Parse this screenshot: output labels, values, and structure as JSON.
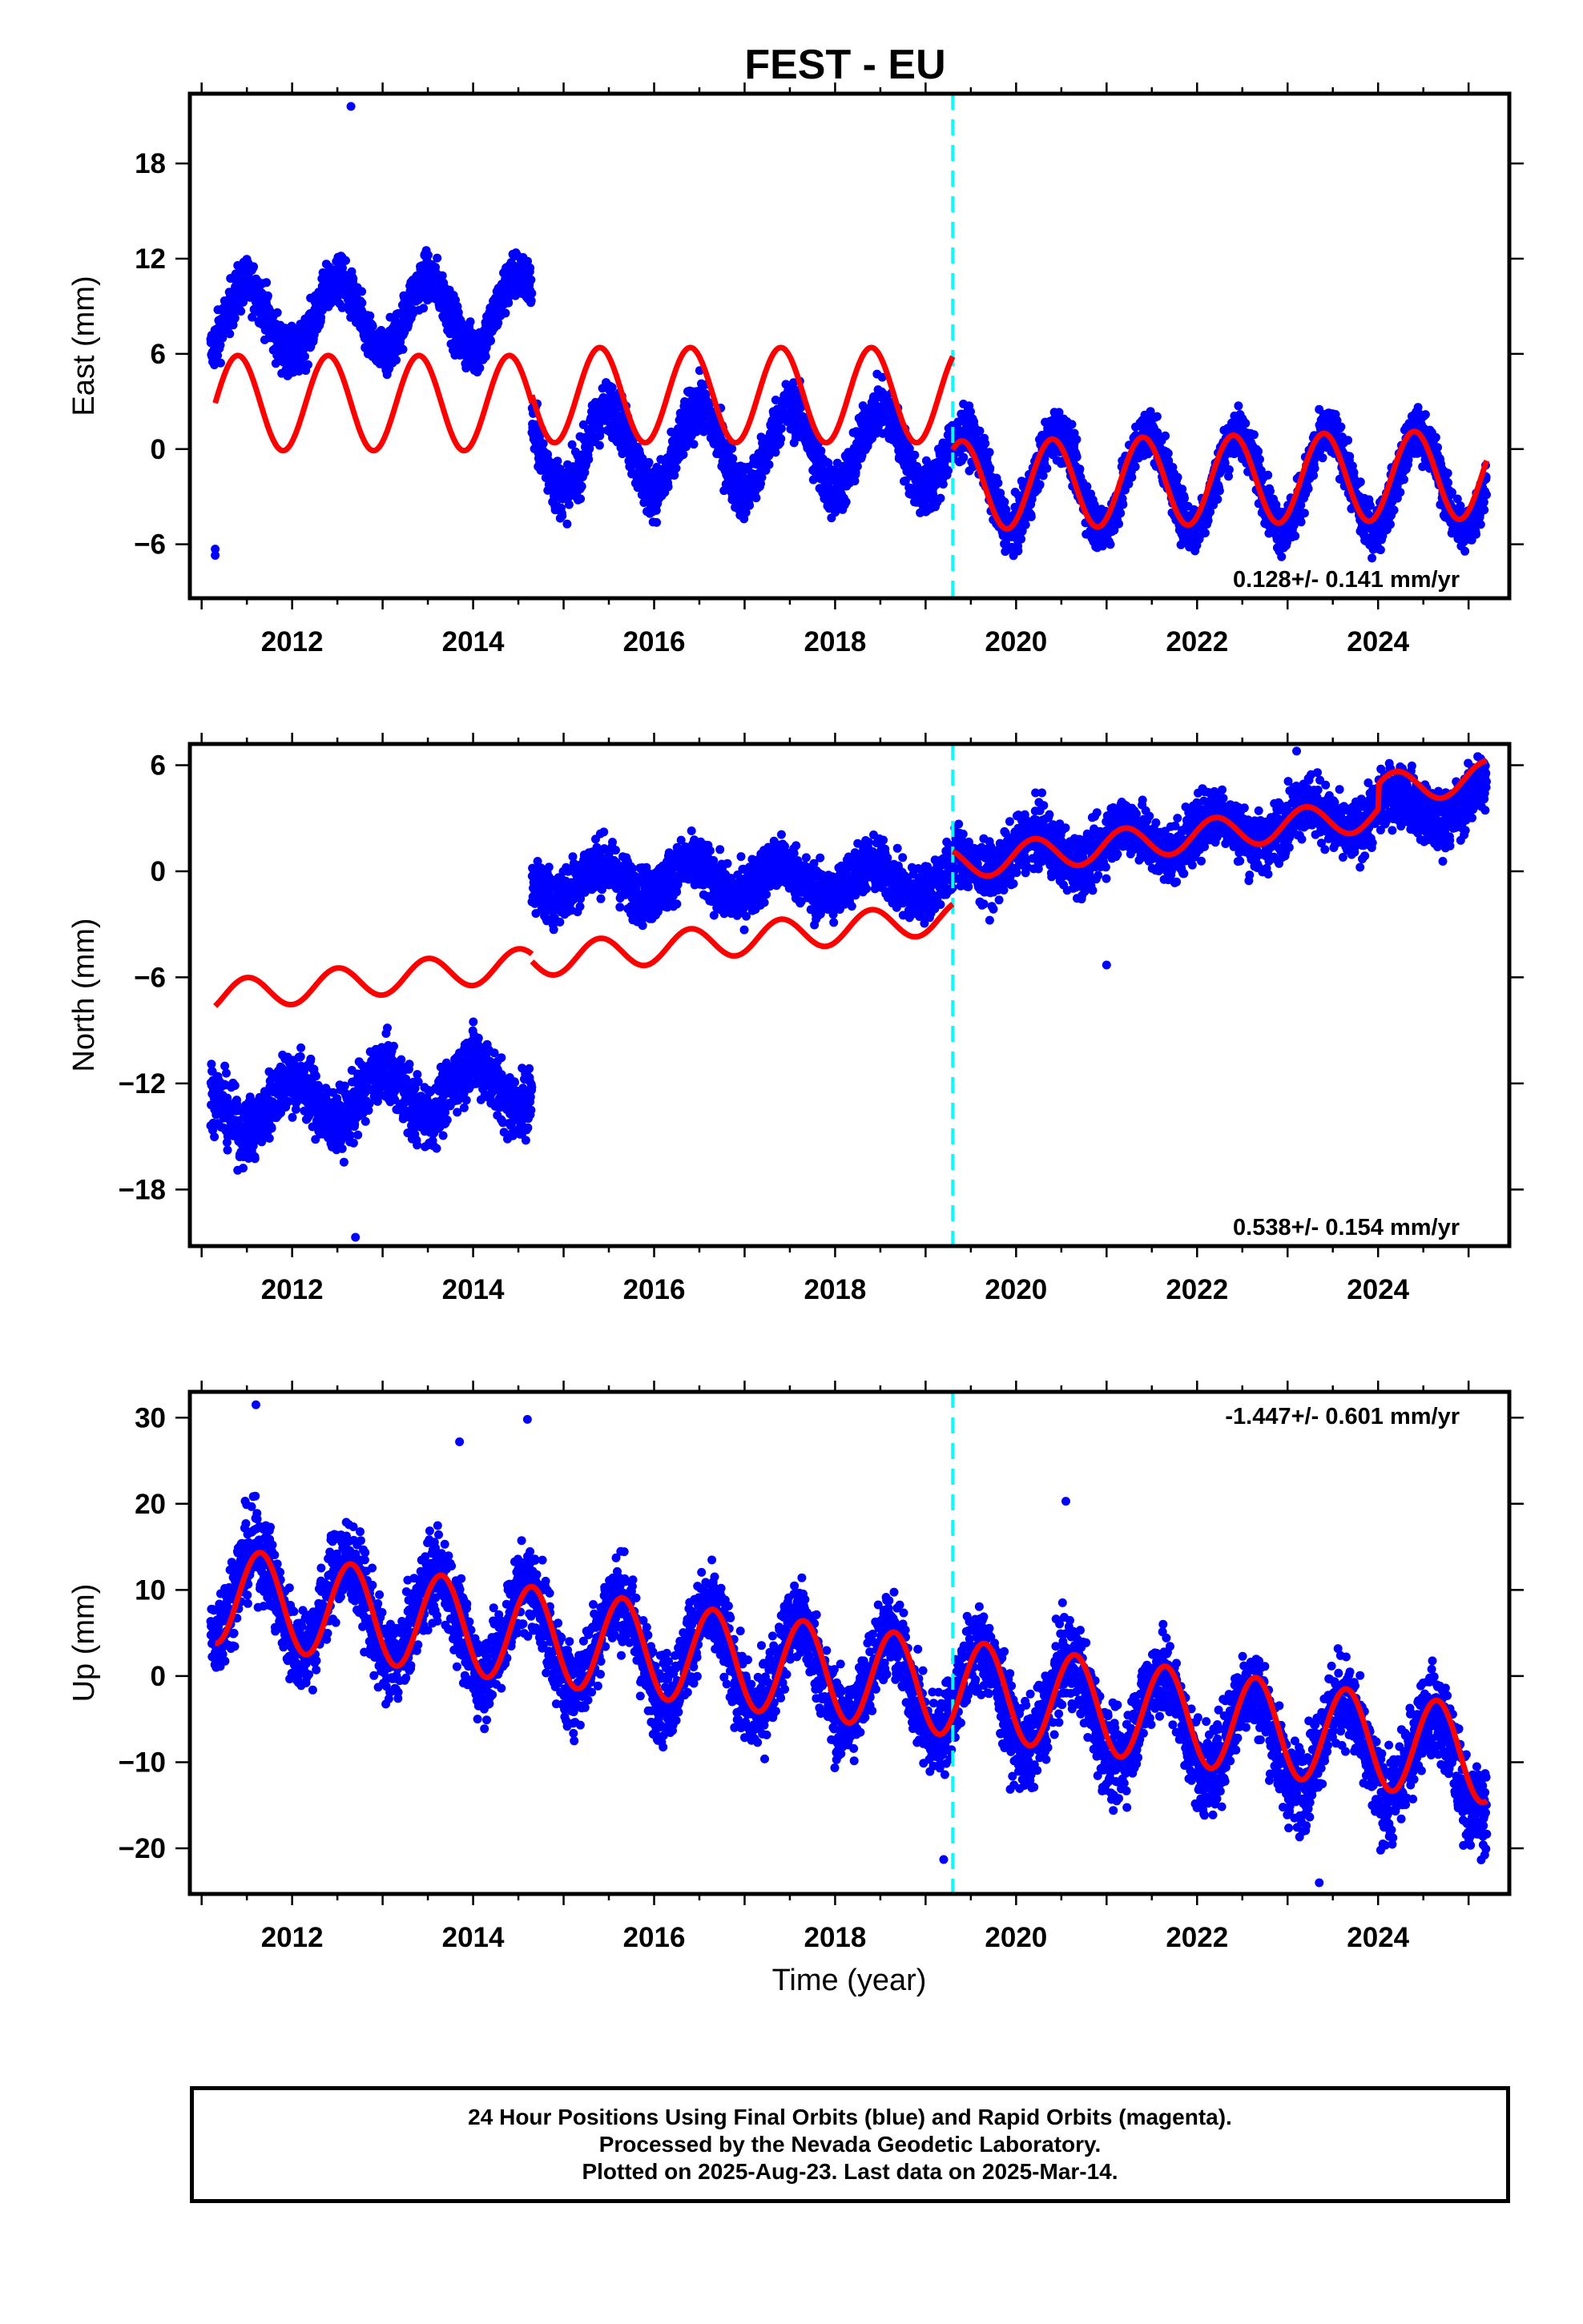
{
  "figure": {
    "title": "FEST - EU",
    "xlabel": "Time (year)",
    "footer": [
      "24 Hour Positions Using Final Orbits (blue) and Rapid Orbits (magenta).",
      "Processed by the Nevada Geodetic Laboratory.",
      "Plotted on 2025-Aug-23. Last data on 2025-Mar-14."
    ],
    "colors": {
      "final_orbits": "#0000ff",
      "model_fit": "#ff0000",
      "equipment_change": "#00ffff",
      "frame": "#000000"
    }
  },
  "chart_data": [
    {
      "type": "scatter",
      "panel": "east",
      "ylabel": "East (mm)",
      "xlim": [
        2010.87,
        2025.45
      ],
      "ylim": [
        -9.4,
        22.4
      ],
      "yticks": [
        -6,
        0,
        6,
        12,
        18
      ],
      "xticks": [
        2012,
        2014,
        2016,
        2018,
        2020,
        2022,
        2024
      ],
      "grid": false,
      "rate_label": "0.128+/- 0.141 mm/yr",
      "rate_label_position": "bottom-right",
      "discontinuities": [
        2019.3
      ],
      "outliers": [
        {
          "x": 2011.15,
          "y": -6.3
        },
        {
          "x": 2011.15,
          "y": -6.7
        },
        {
          "x": 2012.65,
          "y": 21.6
        }
      ],
      "observed_envelope": [
        {
          "start": 2011.1,
          "end": 2014.65,
          "offset": 8.0,
          "trend": 0.2,
          "amplitude": 2.3,
          "phase_year": 2012.5,
          "scatter": 1.1
        },
        {
          "start": 2014.65,
          "end": 2019.3,
          "offset": 0.0,
          "trend": 0.0,
          "amplitude": 2.6,
          "phase_year": 2015.5,
          "scatter": 1.2
        },
        {
          "start": 2019.3,
          "end": 2025.2,
          "offset": -2.0,
          "trend": 0.0,
          "amplitude": 3.0,
          "phase_year": 2020.45,
          "scatter": 1.1
        }
      ],
      "model_segments": [
        {
          "start": 2011.15,
          "end": 2014.65,
          "offset": 2.9,
          "trend": 0.0,
          "amplitude": 3.0,
          "phase_year": 2011.4,
          "step_year": null,
          "step": 0
        },
        {
          "start": 2014.65,
          "end": 2019.3,
          "offset": 3.4,
          "trend": 0.0,
          "amplitude": 3.0,
          "phase_year": 2015.4,
          "step_year": null,
          "step": 0
        },
        {
          "start": 2019.3,
          "end": 2025.2,
          "offset": -2.3,
          "trend": 0.12,
          "amplitude": 2.8,
          "phase_year": 2020.4,
          "step_year": null,
          "step": 0
        }
      ]
    },
    {
      "type": "scatter",
      "panel": "north",
      "ylabel": "North (mm)",
      "xlim": [
        2010.87,
        2025.45
      ],
      "ylim": [
        -21.2,
        7.2
      ],
      "yticks": [
        -18,
        -12,
        -6,
        0,
        6
      ],
      "xticks": [
        2012,
        2014,
        2016,
        2018,
        2020,
        2022,
        2024
      ],
      "grid": false,
      "rate_label": "0.538+/- 0.154 mm/yr",
      "rate_label_position": "bottom-right",
      "discontinuities": [
        2019.3
      ],
      "outliers": [
        {
          "x": 2012.7,
          "y": -20.7
        },
        {
          "x": 2021.0,
          "y": -5.3
        },
        {
          "x": 2023.1,
          "y": 6.8
        }
      ],
      "observed_envelope": [
        {
          "start": 2011.1,
          "end": 2014.65,
          "offset": -13.5,
          "trend": 0.45,
          "amplitude": 1.4,
          "phase_year": 2012.0,
          "scatter": 1.3
        },
        {
          "start": 2014.65,
          "end": 2019.3,
          "offset": -0.5,
          "trend": 0.0,
          "amplitude": 0.9,
          "phase_year": 2015.4,
          "scatter": 1.1
        },
        {
          "start": 2019.3,
          "end": 2025.2,
          "offset": 0.5,
          "trend": 0.6,
          "amplitude": 1.0,
          "phase_year": 2020.2,
          "scatter": 1.2
        }
      ],
      "model_segments": [
        {
          "start": 2011.15,
          "end": 2014.65,
          "offset": -7.1,
          "trend": 0.54,
          "amplitude": 0.9,
          "phase_year": 2011.5,
          "step_year": null,
          "step": 0
        },
        {
          "start": 2014.65,
          "end": 2019.3,
          "offset": -5.1,
          "trend": 0.54,
          "amplitude": 0.9,
          "phase_year": 2015.4,
          "step_year": null,
          "step": 0
        },
        {
          "start": 2019.3,
          "end": 2025.2,
          "offset": 0.4,
          "trend": 0.6,
          "amplitude": 0.9,
          "phase_year": 2020.2,
          "step_year": 2024.0,
          "step": 1.4
        }
      ]
    },
    {
      "type": "scatter",
      "panel": "up",
      "ylabel": "Up (mm)",
      "xlim": [
        2010.87,
        2025.45
      ],
      "ylim": [
        -25.3,
        33.0
      ],
      "yticks": [
        -20,
        -10,
        0,
        10,
        20,
        30
      ],
      "xticks": [
        2012,
        2014,
        2016,
        2018,
        2020,
        2022,
        2024
      ],
      "grid": false,
      "rate_label": "-1.447+/- 0.601 mm/yr",
      "rate_label_position": "top-right",
      "discontinuities": [
        2019.3
      ],
      "outliers": [
        {
          "x": 2011.6,
          "y": 31.5
        },
        {
          "x": 2014.6,
          "y": 29.8
        },
        {
          "x": 2013.85,
          "y": 27.2
        },
        {
          "x": 2020.55,
          "y": 20.3
        },
        {
          "x": 2019.2,
          "y": -21.3
        },
        {
          "x": 2023.35,
          "y": -24.0
        }
      ],
      "observed_envelope": [
        {
          "start": 2011.1,
          "end": 2025.2,
          "offset": 10.0,
          "trend": -1.45,
          "amplitude": 5.5,
          "phase_year": 2011.6,
          "scatter": 3.6
        }
      ],
      "model_segments": [
        {
          "start": 2011.15,
          "end": 2025.2,
          "offset": 9.4,
          "trend": -1.32,
          "amplitude": 5.6,
          "phase_year": 2011.65,
          "step_year": null,
          "step": 0
        }
      ]
    }
  ]
}
